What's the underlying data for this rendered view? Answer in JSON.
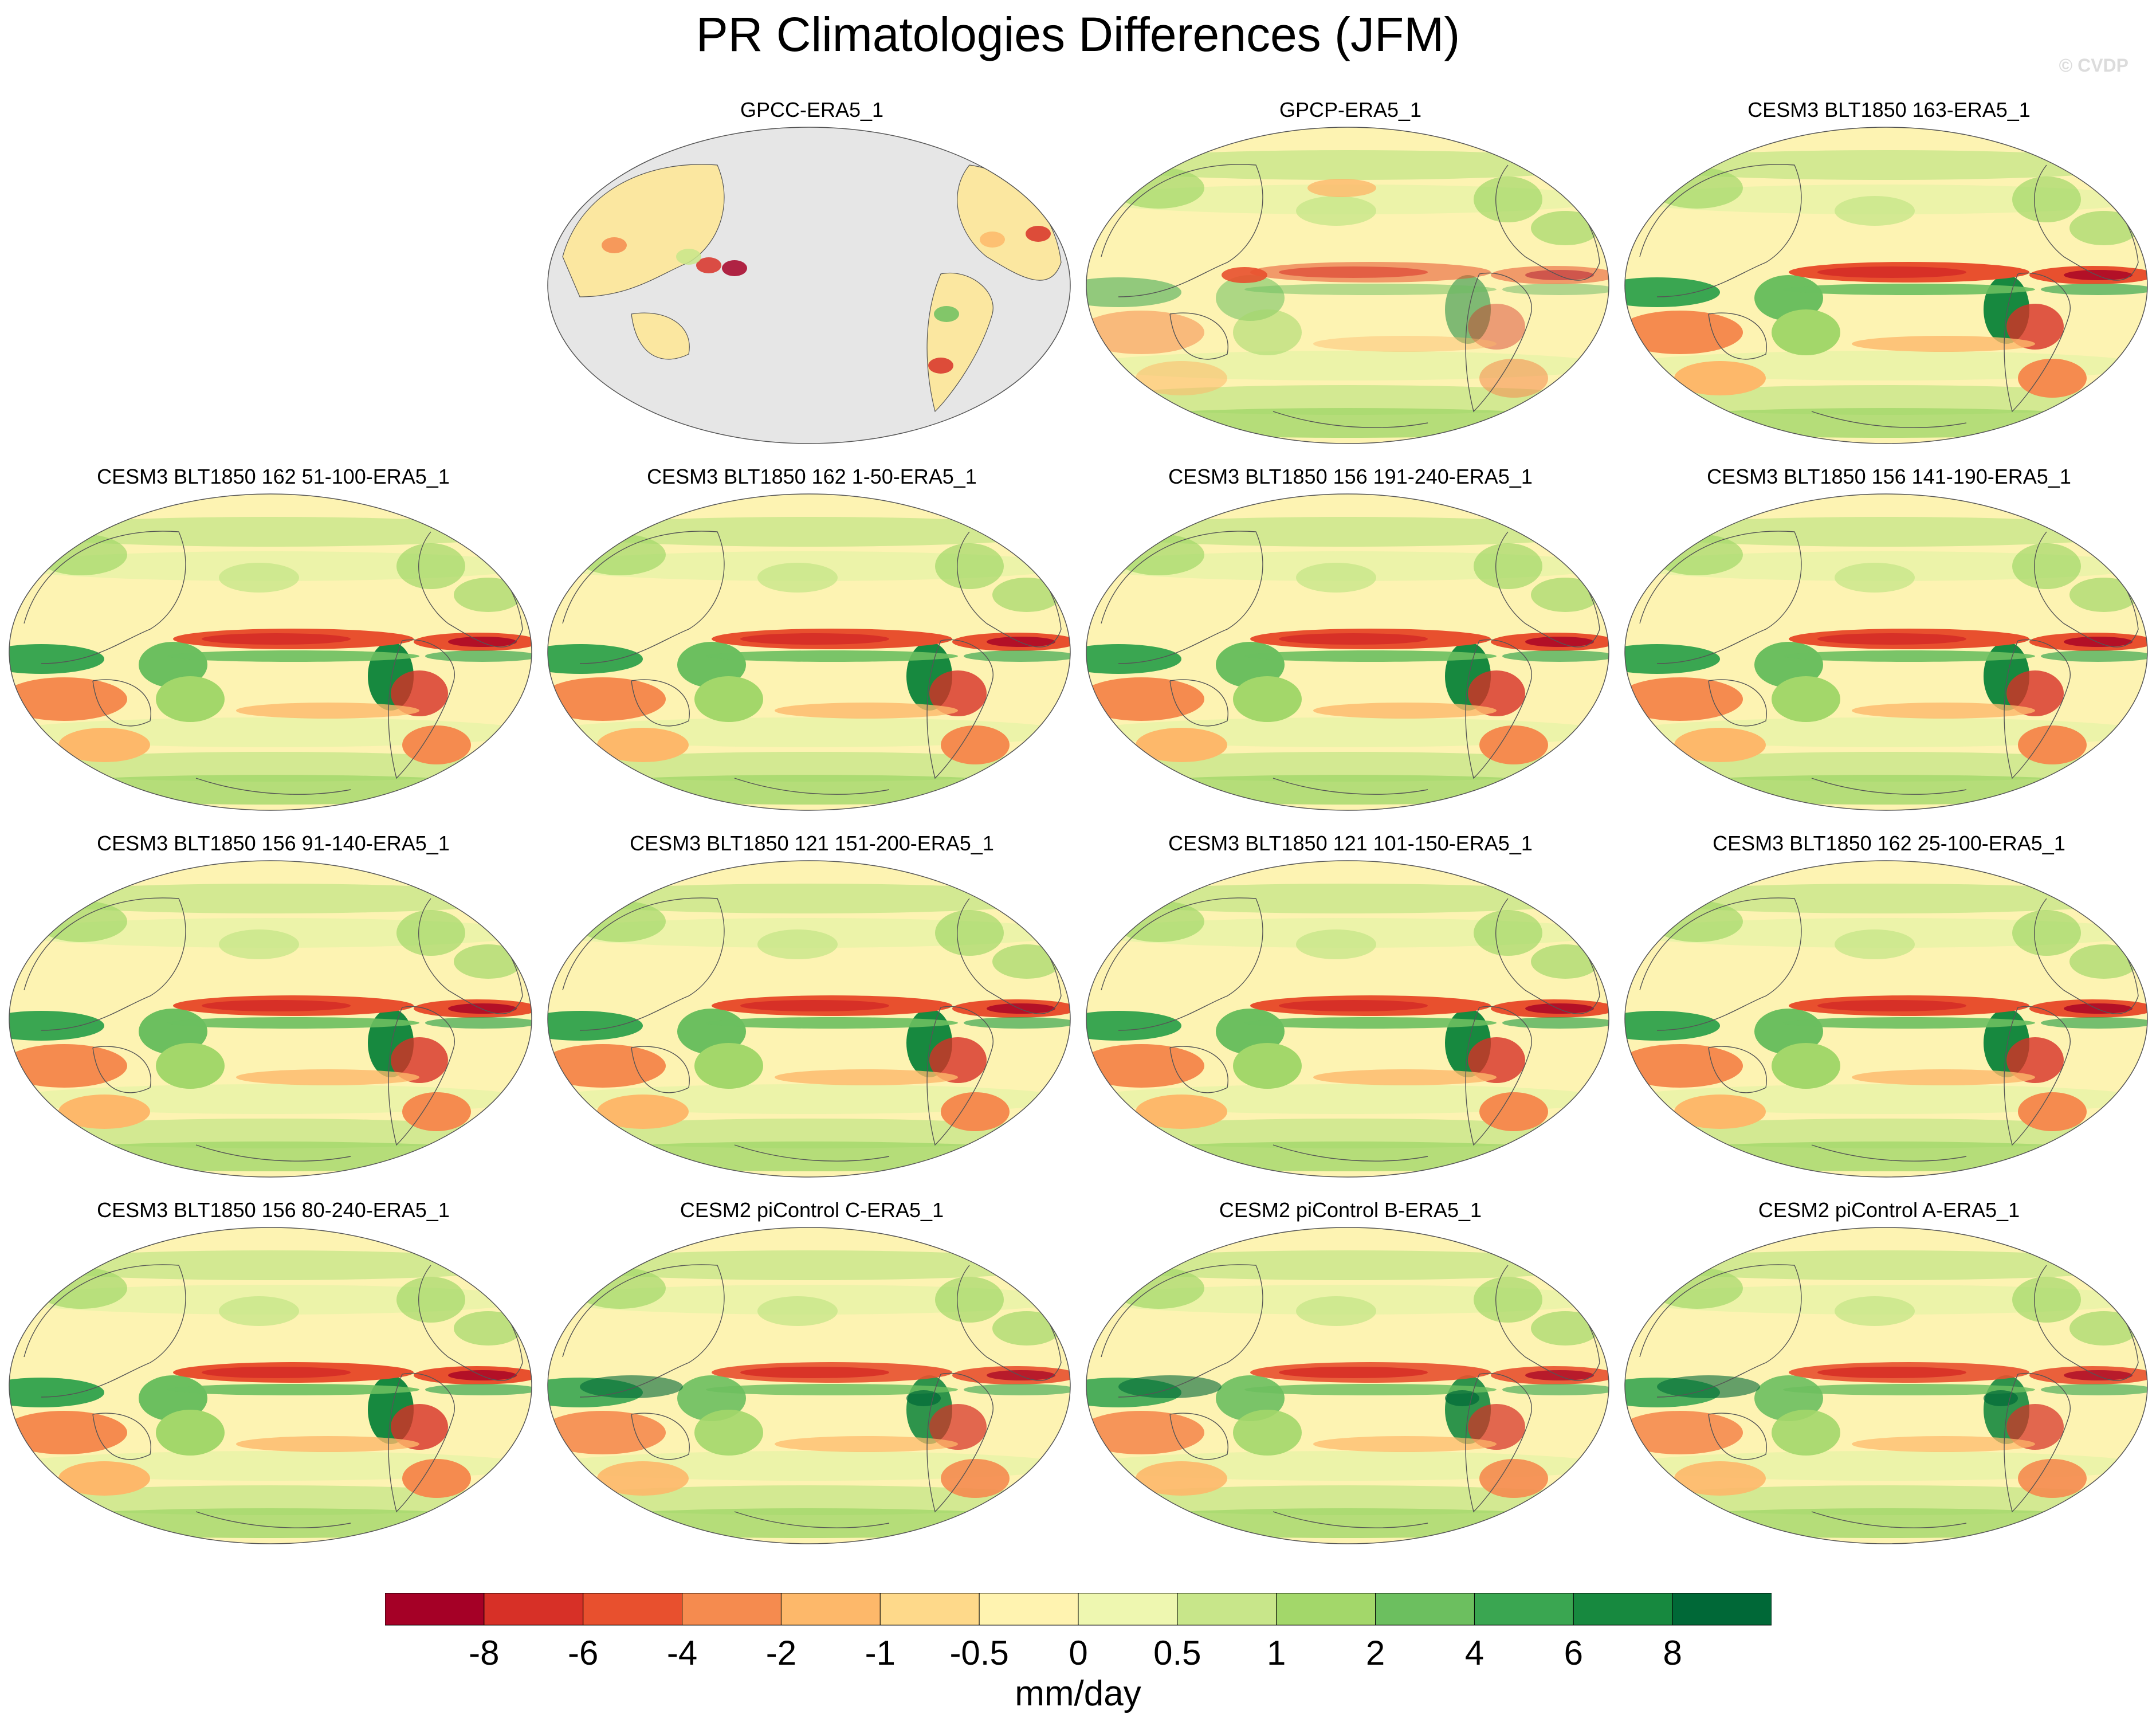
{
  "title": "PR Climatologies Differences (JFM)",
  "watermark": "© CVDP",
  "units": "mm/day",
  "colorbar": {
    "tick_labels": [
      "-8",
      "-6",
      "-4",
      "-2",
      "-1",
      "-0.5",
      "0",
      "0.5",
      "1",
      "2",
      "4",
      "6",
      "8"
    ],
    "colors": [
      "#a50026",
      "#d73027",
      "#e8502e",
      "#f58b4f",
      "#fdb86a",
      "#fed98a",
      "#fff3b0",
      "#eef7b0",
      "#c8e68a",
      "#a3d76a",
      "#6cbf5f",
      "#3aa651",
      "#17893f",
      "#006837"
    ]
  },
  "land_fill": "#e6e6e6",
  "panels": [
    {
      "label": "GPCC-ERA5_1",
      "type": "obs_land"
    },
    {
      "label": "GPCP-ERA5_1",
      "type": "obs"
    },
    {
      "label": "CESM3 BLT1850 163-ERA5_1",
      "type": "model"
    },
    {
      "label": "CESM3 BLT1850 162 51-100-ERA5_1",
      "type": "model"
    },
    {
      "label": "CESM3 BLT1850 162 1-50-ERA5_1",
      "type": "model"
    },
    {
      "label": "CESM3 BLT1850 156 191-240-ERA5_1",
      "type": "model"
    },
    {
      "label": "CESM3 BLT1850 156 141-190-ERA5_1",
      "type": "model"
    },
    {
      "label": "CESM3 BLT1850 156 91-140-ERA5_1",
      "type": "model"
    },
    {
      "label": "CESM3 BLT1850 121 151-200-ERA5_1",
      "type": "model"
    },
    {
      "label": "CESM3 BLT1850 121 101-150-ERA5_1",
      "type": "model"
    },
    {
      "label": "CESM3 BLT1850 162 25-100-ERA5_1",
      "type": "model"
    },
    {
      "label": "CESM3 BLT1850 156 80-240-ERA5_1",
      "type": "model"
    },
    {
      "label": "CESM2 piControl C-ERA5_1",
      "type": "model2"
    },
    {
      "label": "CESM2 piControl B-ERA5_1",
      "type": "model2"
    },
    {
      "label": "CESM2 piControl A-ERA5_1",
      "type": "model2"
    }
  ]
}
